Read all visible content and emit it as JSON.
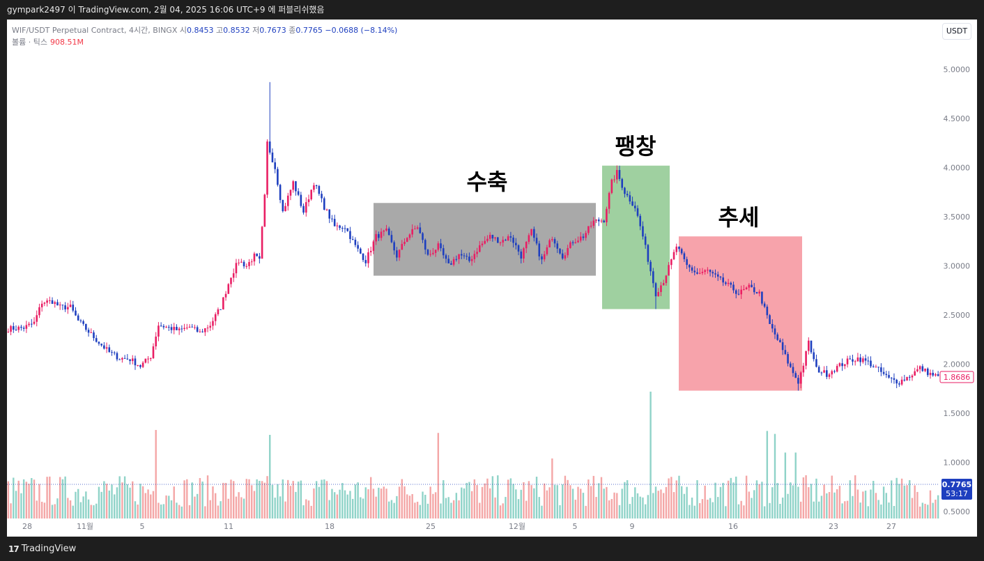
{
  "header": {
    "publish_line": "gympark2497 이 TradingView.com, 2월 04, 2025 16:06 UTC+9 에 퍼블리쉬했음"
  },
  "legend": {
    "symbol": "WIF/USDT Perpetual Contract, 4시간, BINGX",
    "open_label": "시",
    "open": "0.8453",
    "high_label": "고",
    "high": "0.8532",
    "low_label": "저",
    "low": "0.7673",
    "close_label": "종",
    "close": "0.7765",
    "change": "−0.0688 (−8.14%)",
    "volume_label": "볼륨 · 틱스",
    "volume_value": "908.51M"
  },
  "currency_button": "USDT",
  "footer": {
    "logo_mark": "17",
    "logo_text": "TradingView"
  },
  "colors": {
    "up": "#e91e63",
    "down": "#1e3fbf",
    "vol_up": "#f4a6a6",
    "vol_down": "#8fd3c8",
    "contraction_box": "#a9a9a9",
    "expansion_box": "#9fd0a0",
    "trend_box": "#f7a3ab",
    "current_price_badge": "#1e3fbf"
  },
  "chart_data": {
    "type": "candlestick",
    "y_axis": {
      "ticks": [
        "5.0000",
        "4.5000",
        "4.0000",
        "3.5000",
        "3.0000",
        "2.5000",
        "2.0000",
        "1.5000",
        "1.0000",
        "0.5000"
      ],
      "ylim": [
        0.4,
        5.3
      ]
    },
    "x_axis": {
      "ticks": [
        "28",
        "11월",
        "5",
        "11",
        "18",
        "25",
        "12월",
        "5",
        "9",
        "16",
        "23",
        "27"
      ]
    },
    "price_badge": "1.8686",
    "volume_badge_value": "0.7765",
    "volume_badge_timer": "53:17",
    "annotations": [
      {
        "label": "수축",
        "price_top": 3.64,
        "price_bottom": 2.9
      },
      {
        "label": "팽창",
        "price_top": 4.02,
        "price_bottom": 2.56
      },
      {
        "label": "추세",
        "price_top": 3.3,
        "price_bottom": 1.73
      }
    ],
    "price_path": [
      [
        0,
        2.36
      ],
      [
        6,
        2.37
      ],
      [
        10,
        2.42
      ],
      [
        13,
        2.63
      ],
      [
        17,
        2.64
      ],
      [
        20,
        2.58
      ],
      [
        24,
        2.58
      ],
      [
        27,
        2.44
      ],
      [
        31,
        2.33
      ],
      [
        35,
        2.22
      ],
      [
        39,
        2.12
      ],
      [
        43,
        2.06
      ],
      [
        47,
        2.05
      ],
      [
        51,
        1.98
      ],
      [
        55,
        2.08
      ],
      [
        58,
        2.4
      ],
      [
        62,
        2.37
      ],
      [
        66,
        2.34
      ],
      [
        70,
        2.38
      ],
      [
        74,
        2.32
      ],
      [
        78,
        2.4
      ],
      [
        82,
        2.58
      ],
      [
        86,
        2.9
      ],
      [
        89,
        3.05
      ],
      [
        92,
        3.0
      ],
      [
        95,
        3.1
      ],
      [
        97,
        3.05
      ],
      [
        99,
        3.7
      ],
      [
        100,
        4.25
      ],
      [
        103,
        4.0
      ],
      [
        106,
        3.55
      ],
      [
        110,
        3.85
      ],
      [
        114,
        3.55
      ],
      [
        118,
        3.85
      ],
      [
        122,
        3.6
      ],
      [
        126,
        3.4
      ],
      [
        130,
        3.4
      ],
      [
        134,
        3.2
      ],
      [
        138,
        3.05
      ],
      [
        142,
        3.3
      ],
      [
        146,
        3.35
      ],
      [
        150,
        3.1
      ],
      [
        154,
        3.3
      ],
      [
        158,
        3.4
      ],
      [
        162,
        3.1
      ],
      [
        166,
        3.2
      ],
      [
        170,
        3.0
      ],
      [
        174,
        3.12
      ],
      [
        178,
        3.05
      ],
      [
        182,
        3.2
      ],
      [
        186,
        3.3
      ],
      [
        190,
        3.25
      ],
      [
        194,
        3.3
      ],
      [
        198,
        3.1
      ],
      [
        202,
        3.35
      ],
      [
        206,
        3.05
      ],
      [
        210,
        3.3
      ],
      [
        214,
        3.1
      ],
      [
        218,
        3.25
      ],
      [
        222,
        3.3
      ],
      [
        226,
        3.45
      ],
      [
        230,
        3.47
      ],
      [
        233,
        3.85
      ],
      [
        235,
        3.95
      ],
      [
        238,
        3.75
      ],
      [
        242,
        3.6
      ],
      [
        245,
        3.3
      ],
      [
        248,
        2.95
      ],
      [
        250,
        2.72
      ],
      [
        253,
        2.85
      ],
      [
        256,
        3.05
      ],
      [
        258,
        3.2
      ],
      [
        262,
        3.0
      ],
      [
        266,
        2.92
      ],
      [
        270,
        2.95
      ],
      [
        274,
        2.87
      ],
      [
        278,
        2.8
      ],
      [
        282,
        2.72
      ],
      [
        286,
        2.78
      ],
      [
        290,
        2.72
      ],
      [
        294,
        2.4
      ],
      [
        298,
        2.2
      ],
      [
        302,
        1.96
      ],
      [
        305,
        1.82
      ],
      [
        307,
        2.0
      ],
      [
        309,
        2.22
      ],
      [
        312,
        1.95
      ],
      [
        316,
        1.9
      ],
      [
        320,
        1.97
      ],
      [
        324,
        2.03
      ],
      [
        328,
        2.06
      ],
      [
        332,
        2.02
      ],
      [
        336,
        1.94
      ],
      [
        340,
        1.85
      ],
      [
        344,
        1.82
      ],
      [
        348,
        1.88
      ],
      [
        352,
        1.96
      ],
      [
        356,
        1.9
      ],
      [
        359,
        1.87
      ]
    ],
    "highlight_wicks": [
      {
        "bar": 101,
        "high": 4.87
      },
      {
        "bar": 250,
        "low": 2.56
      },
      {
        "bar": 305,
        "low": 1.73
      }
    ],
    "volume_spikes": [
      {
        "bar": 57,
        "value": 1.33
      },
      {
        "bar": 101,
        "value": 1.28
      },
      {
        "bar": 166,
        "value": 1.3
      },
      {
        "bar": 210,
        "value": 1.04
      },
      {
        "bar": 248,
        "value": 1.72
      },
      {
        "bar": 293,
        "value": 1.32
      },
      {
        "bar": 296,
        "value": 1.29
      },
      {
        "bar": 300,
        "value": 1.1
      },
      {
        "bar": 304,
        "value": 1.1
      }
    ]
  }
}
